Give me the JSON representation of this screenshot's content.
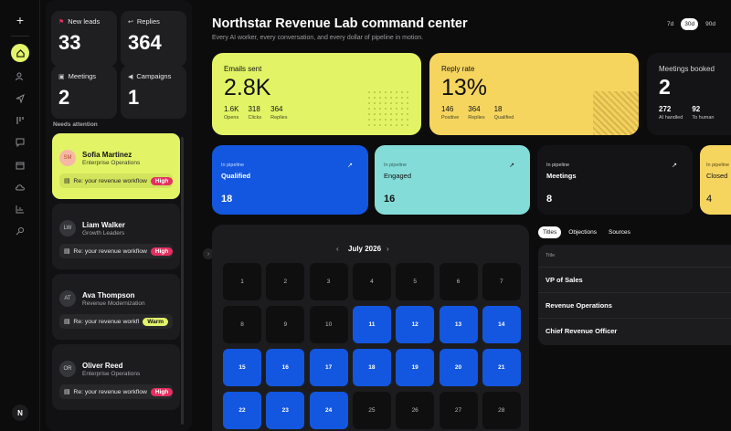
{
  "dashboard": {
    "title": "Northstar Revenue Lab command center",
    "subtitle": "Every AI worker, every conversation, and every dollar of pipeline in motion.",
    "ranges": [
      "7d",
      "30d",
      "90d"
    ]
  },
  "rail": {
    "icons": [
      "add-icon",
      "home-icon",
      "users-icon",
      "send-icon",
      "pipeline-icon",
      "chat-icon",
      "calendar-icon",
      "cloud-icon",
      "chart-icon",
      "search-icon"
    ],
    "logo": "N"
  },
  "stats": [
    {
      "label": "New leads",
      "value": "33",
      "icon": "flag-icon"
    },
    {
      "label": "Replies",
      "value": "364",
      "icon": "reply-icon"
    },
    {
      "label": "Meetings",
      "value": "2",
      "icon": "meeting-icon"
    },
    {
      "label": "Campaigns",
      "value": "1",
      "icon": "megaphone-icon"
    }
  ],
  "attention": {
    "heading": "Needs attention",
    "leads": [
      {
        "initials": "SM",
        "name": "Sofia Martinez",
        "role": "Enterprise Operations",
        "subject": "Re: your revenue workflow",
        "badge": "High"
      },
      {
        "initials": "LW",
        "name": "Liam Walker",
        "role": "Growth Leaders",
        "subject": "Re: your revenue workflow",
        "badge": "High"
      },
      {
        "initials": "AT",
        "name": "Ava Thompson",
        "role": "Revenue Modernization",
        "subject": "Re: your revenue workfl",
        "badge": "Warm"
      },
      {
        "initials": "OR",
        "name": "Oliver Reed",
        "role": "Enterprise Operations",
        "subject": "Re: your revenue workflow",
        "badge": "High"
      }
    ]
  },
  "kpis": {
    "emails": {
      "label": "Emails sent",
      "value": "2.8K",
      "subs": [
        {
          "n": "1.6K",
          "l": "Opens"
        },
        {
          "n": "318",
          "l": "Clicks"
        },
        {
          "n": "364",
          "l": "Replies"
        }
      ]
    },
    "reply": {
      "label": "Reply rate",
      "value": "13%",
      "subs": [
        {
          "n": "146",
          "l": "Positive"
        },
        {
          "n": "364",
          "l": "Replies"
        },
        {
          "n": "18",
          "l": "Qualified"
        }
      ]
    },
    "meetings": {
      "label": "Meetings booked",
      "value": "2",
      "subs": [
        {
          "n": "272",
          "l": "AI handled"
        },
        {
          "n": "92",
          "l": "To human"
        }
      ]
    }
  },
  "stages": [
    {
      "prefix": "In pipeline",
      "name": "Qualified",
      "count": "18"
    },
    {
      "prefix": "In pipeline",
      "name": "Engaged",
      "count": "16"
    },
    {
      "prefix": "In pipeline",
      "name": "Meetings",
      "count": "8"
    },
    {
      "prefix": "In pipeline",
      "name": "Closed",
      "count": "4"
    }
  ],
  "calendar": {
    "month": "July 2026",
    "days": [
      "1",
      "2",
      "3",
      "4",
      "5",
      "6",
      "7",
      "8",
      "9",
      "10",
      "11",
      "12",
      "13",
      "14",
      "15",
      "16",
      "17",
      "18",
      "19",
      "20",
      "21",
      "22",
      "23",
      "24",
      "25",
      "26",
      "27",
      "28"
    ],
    "selected": [
      "11",
      "12",
      "13",
      "14",
      "15",
      "16",
      "17",
      "18",
      "19",
      "20",
      "21",
      "22",
      "23",
      "24"
    ]
  },
  "table": {
    "tabs": [
      "Titles",
      "Objections",
      "Sources"
    ],
    "header": "Title",
    "rows": [
      "VP of Sales",
      "Revenue Operations",
      "Chief Revenue Officer"
    ]
  },
  "colors": {
    "lime": "#e2f466",
    "yellow": "#f6d55f",
    "blue": "#1357e0",
    "teal": "#84dcd8",
    "high": "#e3305f"
  }
}
